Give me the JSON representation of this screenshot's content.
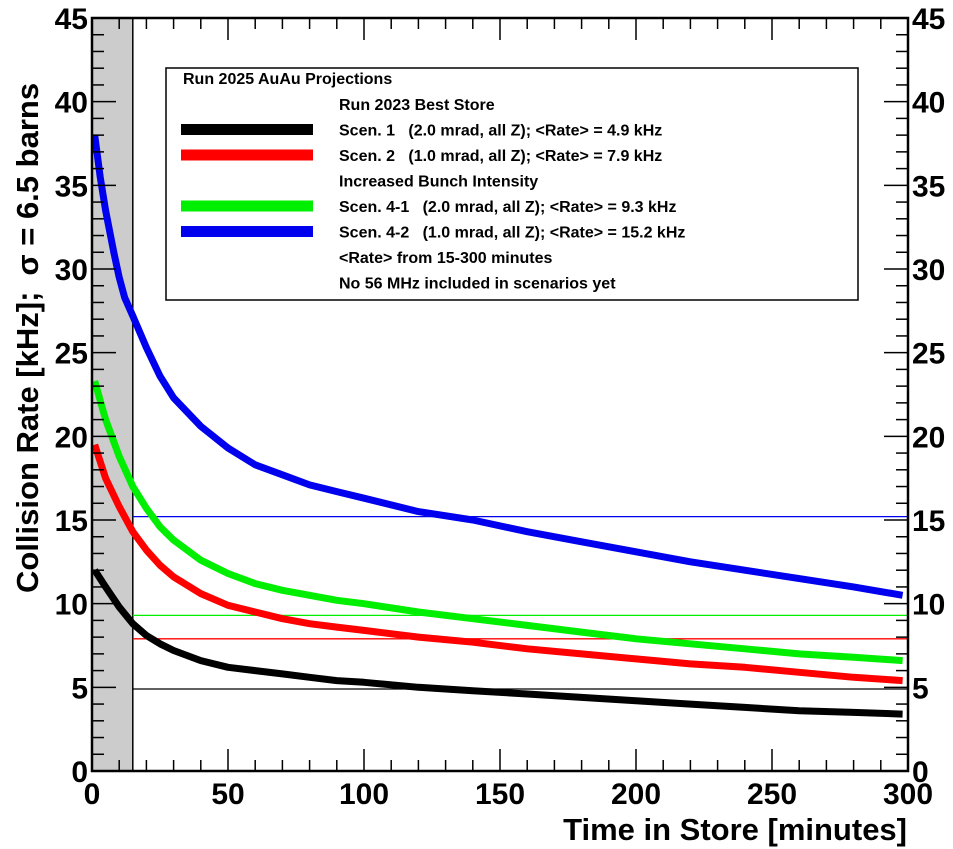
{
  "chart_data": {
    "type": "line",
    "xlabel": "Time in Store [minutes]",
    "ylabel": "Collision Rate [kHz];",
    "ylabel_sigma": "σ = 6.5 barns",
    "xlim": [
      0,
      300
    ],
    "ylim": [
      0,
      45
    ],
    "x_ticks": [
      0,
      50,
      100,
      150,
      200,
      250,
      300
    ],
    "y_ticks": [
      0,
      5,
      10,
      15,
      20,
      25,
      30,
      35,
      40,
      45
    ],
    "x_tick_labels": [
      "0",
      "50",
      "100",
      "150",
      "200",
      "250",
      "300"
    ],
    "y_tick_labels": [
      "0",
      "5",
      "10",
      "15",
      "20",
      "25",
      "30",
      "35",
      "40",
      "45"
    ],
    "right_axis_labels": [
      "0",
      "5",
      "10",
      "15",
      "20",
      "25",
      "30",
      "35",
      "40",
      "45"
    ],
    "shaded_region": {
      "x": [
        0,
        15
      ],
      "color": "#cccccc"
    },
    "legend": {
      "title": "Run 2025 AuAu Projections",
      "placement": "top",
      "rows": [
        {
          "kind": "header",
          "text": "Run 2023 Best Store"
        },
        {
          "kind": "entry",
          "series": 0,
          "text": "Scen. 1   (2.0 mrad, all Z); <Rate> = 4.9 kHz"
        },
        {
          "kind": "entry",
          "series": 1,
          "text": "Scen. 2   (1.0 mrad, all Z); <Rate> = 7.9 kHz"
        },
        {
          "kind": "header",
          "text": "Increased Bunch Intensity"
        },
        {
          "kind": "entry",
          "series": 2,
          "text": "Scen. 4-1   (2.0 mrad, all Z); <Rate> = 9.3 kHz"
        },
        {
          "kind": "entry",
          "series": 3,
          "text": "Scen. 4-2   (1.0 mrad, all Z); <Rate> = 15.2 kHz"
        },
        {
          "kind": "header",
          "text": "<Rate> from 15-300 minutes"
        },
        {
          "kind": "header",
          "text": "No 56 MHz included in scenarios yet"
        }
      ]
    },
    "series": [
      {
        "name": "Scen. 1",
        "color": "#000000",
        "mean_rate": 4.9,
        "x": [
          1,
          5,
          10,
          15,
          20,
          25,
          30,
          40,
          50,
          60,
          70,
          80,
          90,
          100,
          120,
          140,
          160,
          180,
          200,
          220,
          240,
          260,
          280,
          298
        ],
        "y": [
          12.0,
          11.0,
          9.8,
          8.8,
          8.1,
          7.6,
          7.2,
          6.6,
          6.2,
          6.0,
          5.8,
          5.6,
          5.4,
          5.3,
          5.0,
          4.8,
          4.6,
          4.4,
          4.2,
          4.0,
          3.8,
          3.6,
          3.5,
          3.4
        ]
      },
      {
        "name": "Scen. 2",
        "color": "#ff0000",
        "mean_rate": 7.9,
        "x": [
          1,
          5,
          10,
          15,
          20,
          25,
          30,
          40,
          50,
          60,
          70,
          80,
          90,
          100,
          120,
          140,
          160,
          180,
          200,
          220,
          240,
          260,
          280,
          298
        ],
        "y": [
          19.5,
          17.5,
          15.8,
          14.3,
          13.2,
          12.3,
          11.6,
          10.6,
          9.9,
          9.5,
          9.1,
          8.8,
          8.6,
          8.4,
          8.0,
          7.7,
          7.3,
          7.0,
          6.7,
          6.4,
          6.2,
          5.9,
          5.6,
          5.4
        ]
      },
      {
        "name": "Scen. 4-1",
        "color": "#00ee00",
        "mean_rate": 9.3,
        "x": [
          1,
          5,
          10,
          15,
          20,
          25,
          30,
          40,
          50,
          60,
          70,
          80,
          90,
          100,
          120,
          140,
          160,
          180,
          200,
          220,
          240,
          260,
          280,
          298
        ],
        "y": [
          23.3,
          21.0,
          18.8,
          17.0,
          15.7,
          14.6,
          13.8,
          12.6,
          11.8,
          11.2,
          10.8,
          10.5,
          10.2,
          10.0,
          9.5,
          9.1,
          8.7,
          8.3,
          7.9,
          7.6,
          7.3,
          7.0,
          6.8,
          6.6
        ]
      },
      {
        "name": "Scen. 4-2",
        "color": "#0000ee",
        "mean_rate": 15.2,
        "x": [
          1,
          3,
          5,
          8,
          10,
          12,
          15,
          20,
          25,
          30,
          40,
          50,
          60,
          70,
          80,
          90,
          100,
          120,
          140,
          160,
          180,
          200,
          220,
          240,
          260,
          280,
          298
        ],
        "y": [
          38.0,
          35.5,
          33.5,
          31.0,
          29.5,
          28.3,
          27.2,
          25.3,
          23.6,
          22.3,
          20.6,
          19.3,
          18.3,
          17.7,
          17.1,
          16.7,
          16.3,
          15.5,
          15.0,
          14.3,
          13.7,
          13.1,
          12.5,
          12.0,
          11.5,
          11.0,
          10.5
        ]
      }
    ]
  }
}
